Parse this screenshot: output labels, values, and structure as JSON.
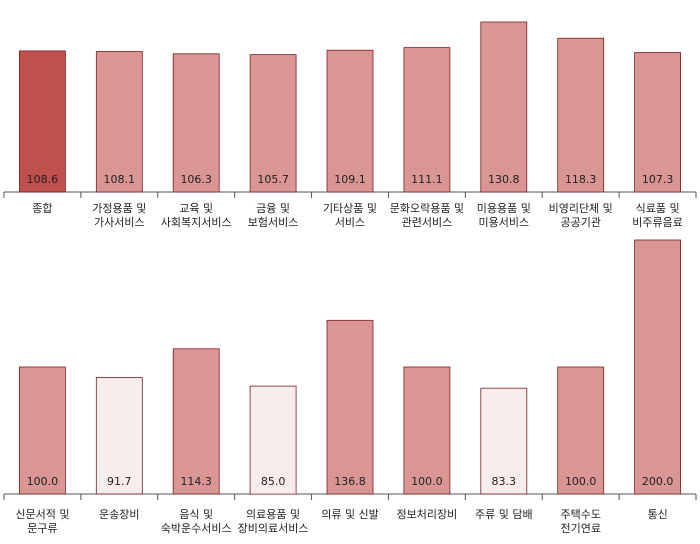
{
  "chart_data": [
    {
      "type": "bar",
      "categories": [
        [
          "종합"
        ],
        [
          "가정용품 및",
          "가사서비스"
        ],
        [
          "교육 및",
          "사회복지서비스"
        ],
        [
          "금융 및",
          "보험서비스"
        ],
        [
          "기타상품 및",
          "서비스"
        ],
        [
          "문화오락용품 및",
          "관련서비스"
        ],
        [
          "미용용품 및",
          "미용서비스"
        ],
        [
          "비영리단체 및",
          "공공기관"
        ],
        [
          "식료품 및",
          "비주류음료"
        ]
      ],
      "values": [
        108.6,
        108.1,
        106.3,
        105.7,
        109.1,
        111.1,
        130.8,
        118.3,
        107.3
      ],
      "value_labels": [
        "108.6",
        "108.1",
        "106.3",
        "105.7",
        "109.1",
        "111.1",
        "130.8",
        "118.3",
        "107.3"
      ],
      "bar_colors": [
        "#c0504d",
        "#d99694",
        "#d99694",
        "#d99694",
        "#d99694",
        "#d99694",
        "#d99694",
        "#d99694",
        "#d99694"
      ]
    },
    {
      "type": "bar",
      "categories": [
        [
          "신문서적 및",
          "문구류"
        ],
        [
          "운송장비"
        ],
        [
          "음식 및",
          "숙박운수서비스"
        ],
        [
          "의료용품 및",
          "장비의료서비스"
        ],
        [
          "의류 및 신발"
        ],
        [
          "정보처리장비"
        ],
        [
          "주류 및 담배"
        ],
        [
          "주택수도",
          "전기연료"
        ],
        [
          "통신"
        ]
      ],
      "values": [
        100.0,
        91.7,
        114.3,
        85.0,
        136.8,
        100.0,
        83.3,
        100.0,
        200.0
      ],
      "value_labels": [
        "100.0",
        "91.7",
        "114.3",
        "85.0",
        "136.8",
        "100.0",
        "83.3",
        "100.0",
        "200.0"
      ],
      "bar_colors": [
        "#d99694",
        "#f8eded",
        "#d99694",
        "#f8eded",
        "#d99694",
        "#d99694",
        "#f8eded",
        "#d99694",
        "#d99694"
      ]
    }
  ],
  "colors": {
    "bar_stroke": "#7a2020",
    "axis": "#555555"
  }
}
